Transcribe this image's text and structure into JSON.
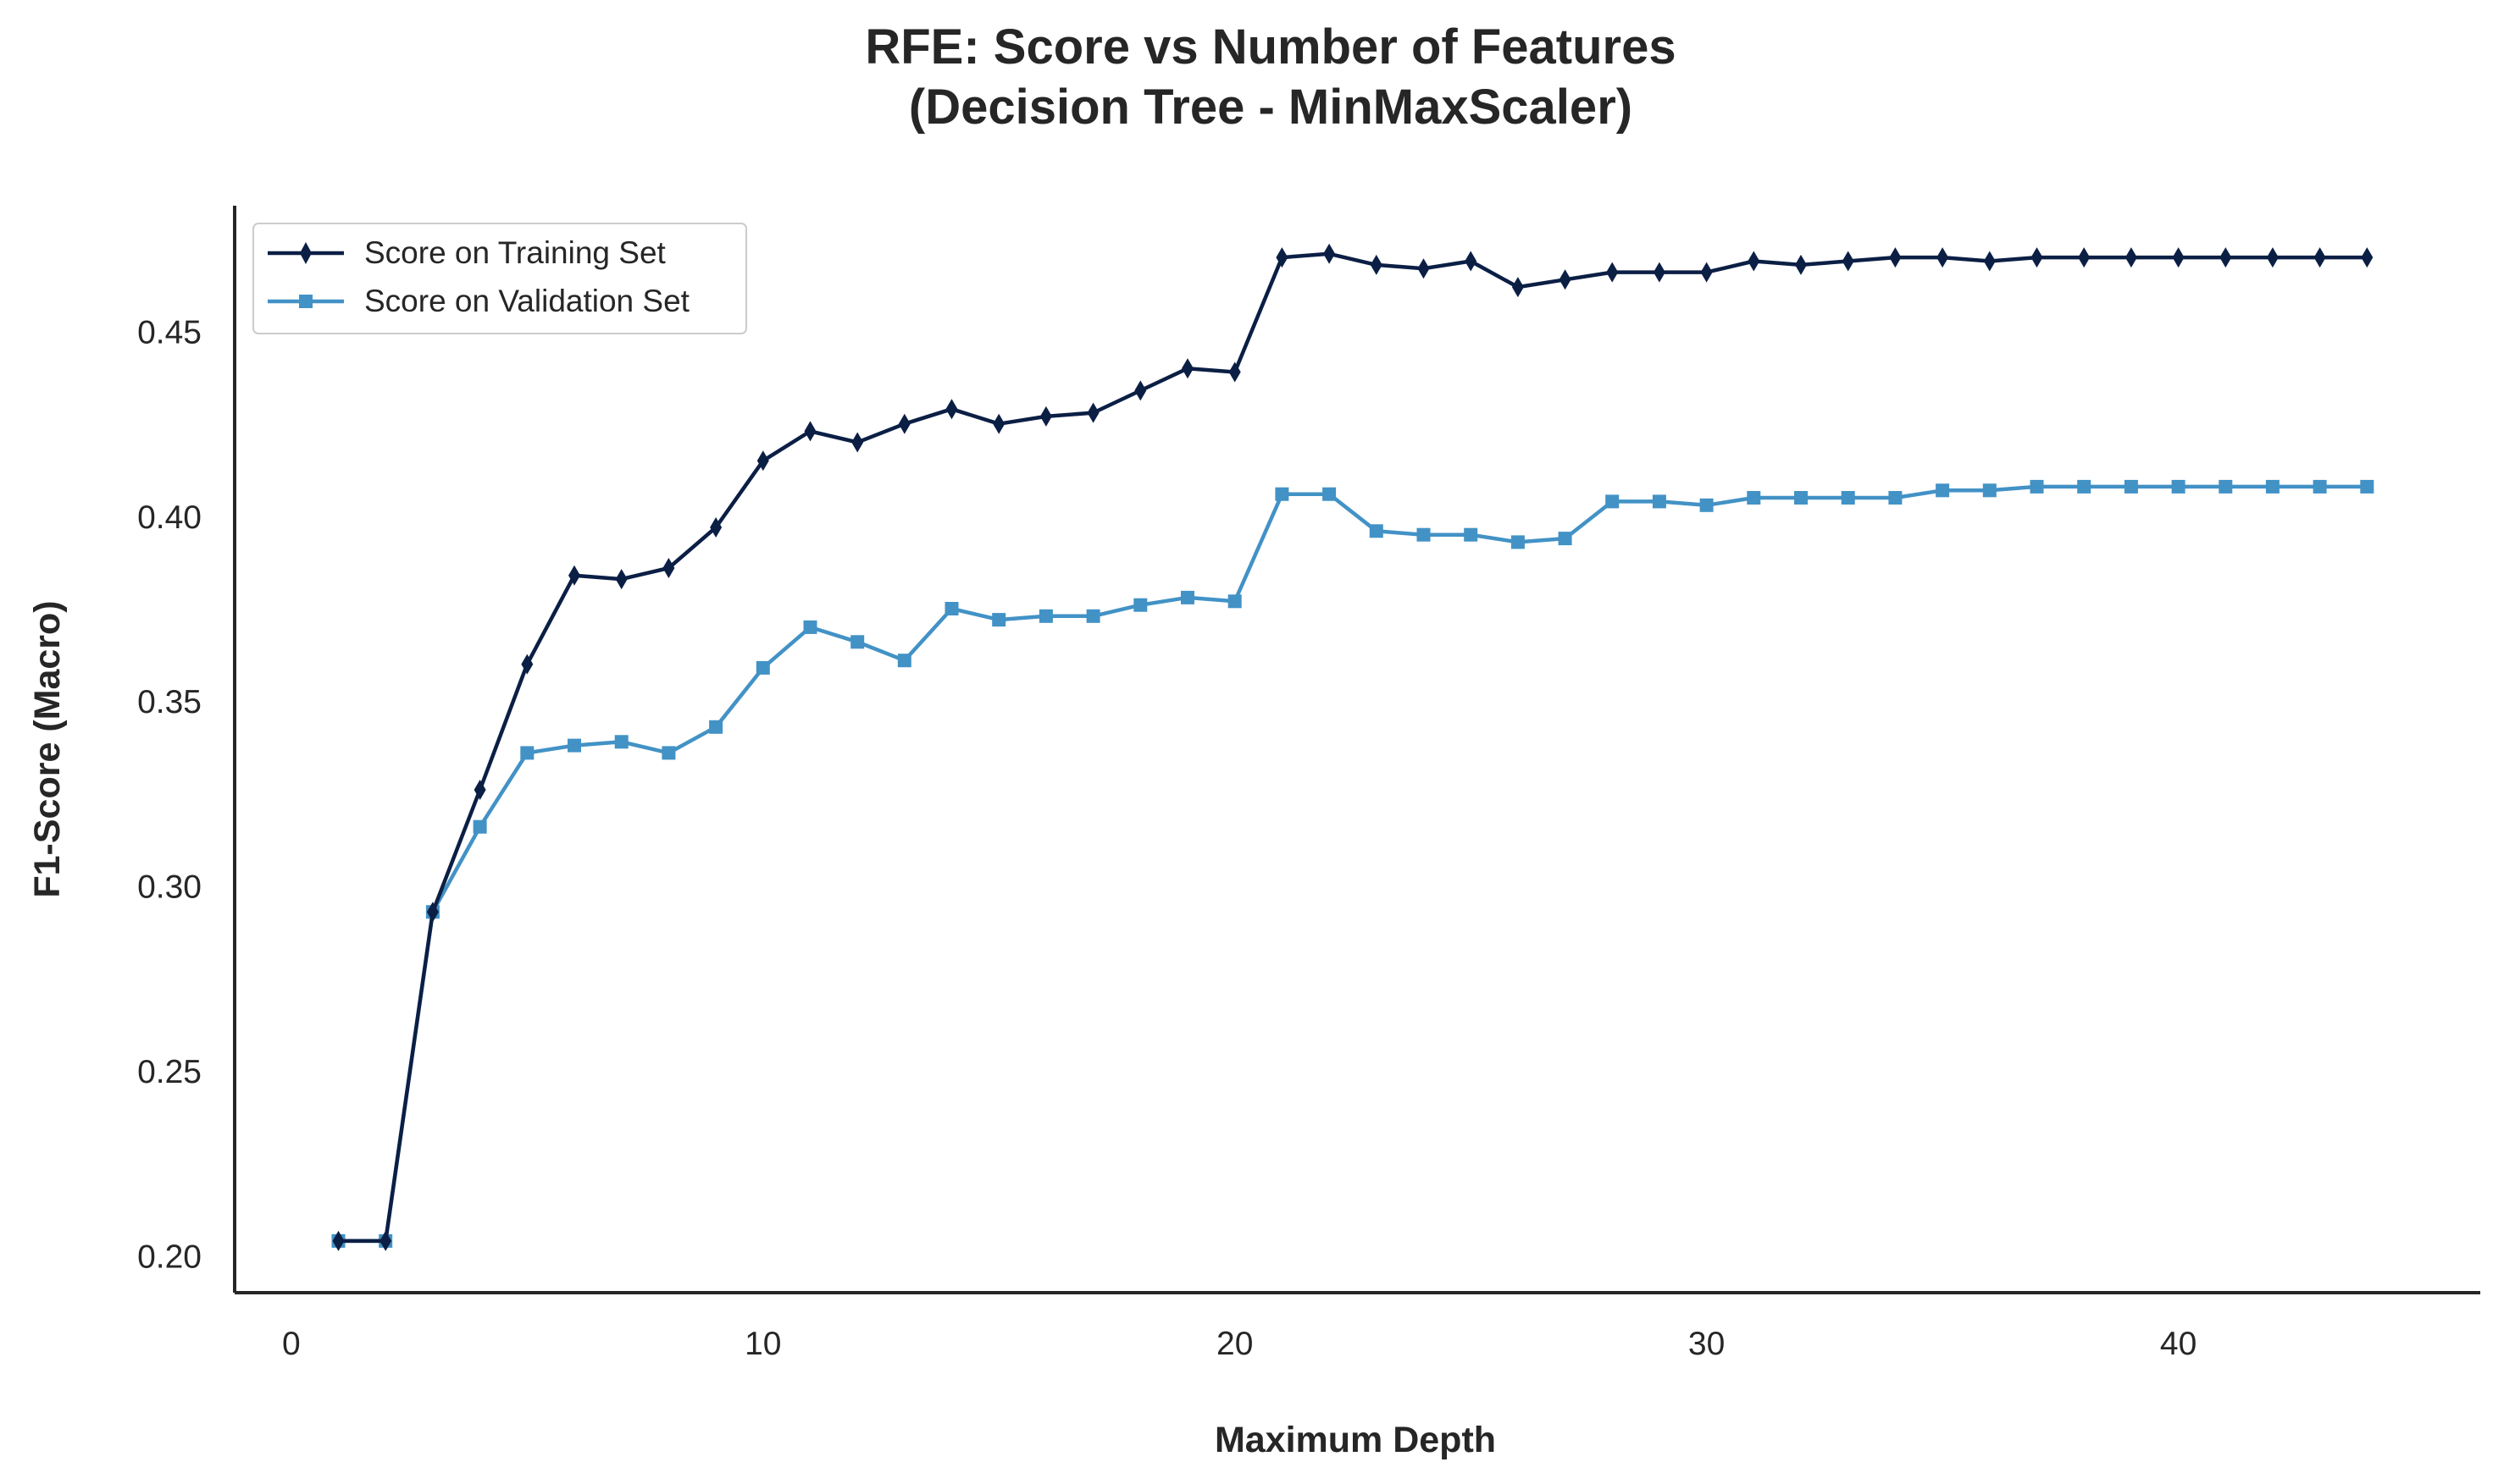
{
  "chart_data": {
    "type": "line",
    "title": [
      "RFE: Score vs Number of Features",
      "(Decision Tree - MinMaxScaler)"
    ],
    "xlabel": "Maximum Depth",
    "ylabel": "F1-Score (Macro)",
    "xlim": [
      -1.2,
      46.4
    ],
    "ylim": [
      0.19,
      0.484
    ],
    "xticks": [
      0,
      10,
      20,
      30,
      40
    ],
    "yticks": [
      0.2,
      0.25,
      0.3,
      0.35,
      0.4,
      0.45
    ],
    "grid": false,
    "legend_position": "upper-left",
    "x": [
      1,
      2,
      3,
      4,
      5,
      6,
      7,
      8,
      9,
      10,
      11,
      12,
      13,
      14,
      15,
      16,
      17,
      18,
      19,
      20,
      21,
      22,
      23,
      24,
      25,
      26,
      27,
      28,
      29,
      30,
      31,
      32,
      33,
      34,
      35,
      36,
      37,
      38,
      39,
      40,
      41,
      42,
      43,
      44
    ],
    "series": [
      {
        "name": "Score on Training Set",
        "color": "#0b1f45",
        "marker": "diamond",
        "values": [
          0.204,
          0.204,
          0.293,
          0.326,
          0.36,
          0.384,
          0.383,
          0.386,
          0.397,
          0.415,
          0.423,
          0.42,
          0.425,
          0.429,
          0.425,
          0.427,
          0.428,
          0.434,
          0.44,
          0.439,
          0.47,
          0.471,
          0.468,
          0.467,
          0.469,
          0.462,
          0.464,
          0.466,
          0.466,
          0.466,
          0.469,
          0.468,
          0.469,
          0.47,
          0.47,
          0.469,
          0.47,
          0.47,
          0.47,
          0.47,
          0.47,
          0.47,
          0.47,
          0.47
        ]
      },
      {
        "name": "Score on Validation Set",
        "color": "#4292c6",
        "marker": "square",
        "values": [
          0.204,
          0.204,
          0.293,
          0.316,
          0.336,
          0.338,
          0.339,
          0.336,
          0.343,
          0.359,
          0.37,
          0.366,
          0.361,
          0.375,
          0.372,
          0.373,
          0.373,
          0.376,
          0.378,
          0.377,
          0.406,
          0.406,
          0.396,
          0.395,
          0.395,
          0.393,
          0.394,
          0.404,
          0.404,
          0.403,
          0.405,
          0.405,
          0.405,
          0.405,
          0.407,
          0.407,
          0.408,
          0.408,
          0.408,
          0.408,
          0.408,
          0.408,
          0.408,
          0.408
        ]
      }
    ]
  }
}
